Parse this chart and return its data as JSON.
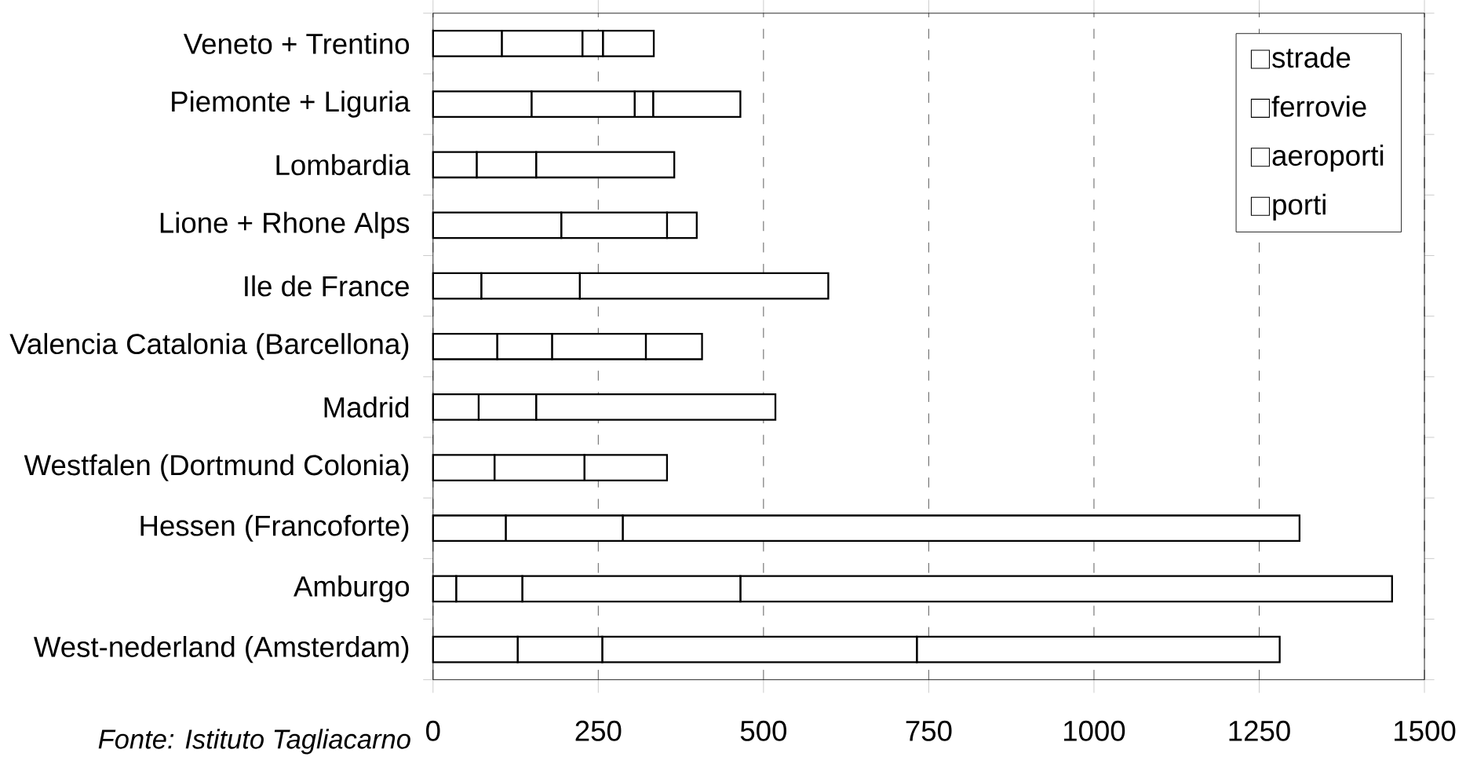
{
  "chart_data": {
    "type": "bar",
    "orientation": "horizontal",
    "stacked": true,
    "categories": [
      "Veneto + Trentino",
      "Piemonte + Liguria",
      "Lombardia",
      "Lione + Rhone Alps",
      "Ile de France",
      "Valencia Catalonia (Barcellona)",
      "Madrid",
      "Westfalen (Dortmund  Colonia)",
      "Hessen (Francoforte)",
      "Amburgo",
      "West-nederland (Amsterdam)"
    ],
    "series": [
      {
        "name": "strade",
        "color": "#ffffff",
        "values": [
          104,
          149,
          66,
          194,
          73,
          97,
          69,
          93,
          110,
          35,
          128
        ]
      },
      {
        "name": "ferrovie",
        "color": "#ffffff",
        "values": [
          122,
          156,
          90,
          160,
          149,
          83,
          87,
          136,
          177,
          100,
          128
        ]
      },
      {
        "name": "aeroporti",
        "color": "#ffffff",
        "values": [
          31,
          28,
          209,
          45,
          376,
          142,
          362,
          125,
          1024,
          330,
          476
        ]
      },
      {
        "name": "porti",
        "color": "#ffffff",
        "values": [
          77,
          132,
          0,
          0,
          0,
          85,
          0,
          0,
          0,
          986,
          549
        ]
      }
    ],
    "xlim": [
      0,
      1500
    ],
    "xticks": [
      0,
      250,
      500,
      750,
      1000,
      1250,
      1500
    ],
    "grid": "x",
    "legend": "top right",
    "annotations": [
      "Fonte: Istituto Tagliacarno"
    ]
  }
}
